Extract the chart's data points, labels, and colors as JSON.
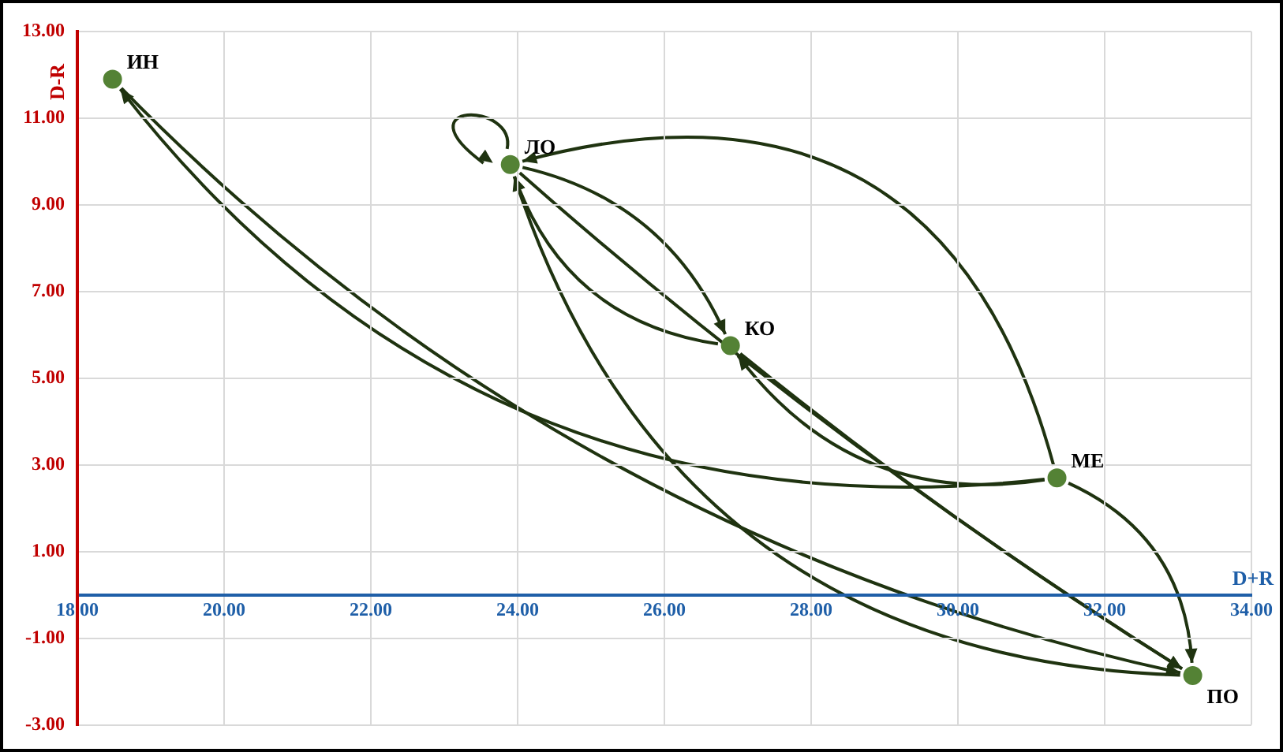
{
  "chart_data": {
    "type": "scatter",
    "xlabel": "D+R",
    "ylabel": "D-R",
    "series": [
      {
        "color": "#548235",
        "x": [
          18.48,
          23.9,
          26.9,
          31.35,
          33.2
        ],
        "values": [
          11.9,
          9.93,
          5.75,
          2.7,
          -1.86
        ]
      }
    ],
    "annotations": [
      {
        "text": "ИН",
        "x": 18.48,
        "y": 11.9
      },
      {
        "text": "ЛО",
        "x": 23.9,
        "y": 9.93
      },
      {
        "text": "КО",
        "x": 26.9,
        "y": 5.75
      },
      {
        "text": "МЕ",
        "x": 31.35,
        "y": 2.7
      },
      {
        "text": "ПО",
        "x": 33.2,
        "y": -1.86
      }
    ],
    "xlim": [
      18,
      34
    ],
    "xticks": [
      {
        "value": 18,
        "label": "18.00"
      },
      {
        "value": 20,
        "label": "20.00"
      },
      {
        "value": 22,
        "label": "22.00"
      },
      {
        "value": 24,
        "label": "24.00"
      },
      {
        "value": 26,
        "label": "26.00"
      },
      {
        "value": 28,
        "label": "28.00"
      },
      {
        "value": 30,
        "label": "30.00"
      },
      {
        "value": 32,
        "label": "32.00"
      },
      {
        "value": 34,
        "label": "34.00"
      }
    ],
    "ylim": [
      -3,
      13
    ],
    "yticks": [
      {
        "value": -3,
        "label": "-3.00"
      },
      {
        "value": -1,
        "label": "-1.00"
      },
      {
        "value": 1,
        "label": "1.00"
      },
      {
        "value": 3,
        "label": "3.00"
      },
      {
        "value": 5,
        "label": "5.00"
      },
      {
        "value": 7,
        "label": "7.00"
      },
      {
        "value": 9,
        "label": "9.00"
      },
      {
        "value": 11,
        "label": "11.00"
      },
      {
        "value": 13,
        "label": "13.00"
      }
    ],
    "grid": true,
    "marker": "circle"
  }
}
